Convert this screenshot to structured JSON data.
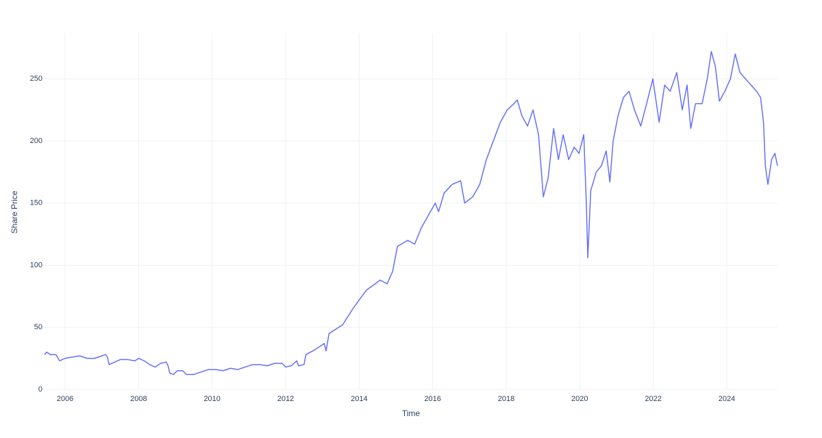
{
  "chart_data": {
    "type": "line",
    "x_label": "Time",
    "y_label": "Share Price",
    "x": [
      2005.44,
      2005.5,
      2005.6,
      2005.75,
      2005.85,
      2006.0,
      2006.2,
      2006.4,
      2006.6,
      2006.8,
      2007.0,
      2007.1,
      2007.15,
      2007.2,
      2007.35,
      2007.5,
      2007.7,
      2007.9,
      2008.0,
      2008.15,
      2008.3,
      2008.45,
      2008.6,
      2008.75,
      2008.8,
      2008.85,
      2008.95,
      2009.05,
      2009.2,
      2009.3,
      2009.5,
      2009.7,
      2009.9,
      2010.1,
      2010.3,
      2010.5,
      2010.7,
      2010.9,
      2011.1,
      2011.3,
      2011.5,
      2011.7,
      2011.9,
      2012.0,
      2012.15,
      2012.3,
      2012.35,
      2012.5,
      2012.55,
      2012.8,
      2012.95,
      2013.05,
      2013.1,
      2013.18,
      2013.55,
      2013.83,
      2014.0,
      2014.2,
      2014.39,
      2014.57,
      2014.76,
      2014.91,
      2015.04,
      2015.32,
      2015.51,
      2015.69,
      2015.88,
      2016.07,
      2016.16,
      2016.31,
      2016.53,
      2016.76,
      2016.87,
      2017.09,
      2017.28,
      2017.46,
      2017.65,
      2017.84,
      2018.03,
      2018.21,
      2018.3,
      2018.43,
      2018.58,
      2018.73,
      2018.88,
      2019.01,
      2019.14,
      2019.29,
      2019.42,
      2019.55,
      2019.7,
      2019.85,
      2019.98,
      2020.11,
      2020.18,
      2020.22,
      2020.3,
      2020.45,
      2020.59,
      2020.72,
      2020.82,
      2020.91,
      2021.04,
      2021.19,
      2021.34,
      2021.49,
      2021.66,
      2021.82,
      2021.99,
      2022.16,
      2022.31,
      2022.46,
      2022.64,
      2022.79,
      2022.92,
      2023.02,
      2023.15,
      2023.33,
      2023.47,
      2023.58,
      2023.69,
      2023.8,
      2023.95,
      2024.1,
      2024.23,
      2024.36,
      2024.51,
      2024.66,
      2024.81,
      2024.92,
      2025.0,
      2025.05,
      2025.12,
      2025.22,
      2025.31,
      2025.38
    ],
    "values": [
      28,
      30,
      28,
      28,
      23,
      25,
      26,
      27,
      25,
      25,
      27,
      28,
      26,
      20,
      22,
      24,
      24,
      23,
      25,
      23,
      20,
      18,
      21,
      22,
      19,
      13,
      12,
      15,
      15,
      12,
      12,
      14,
      16,
      16,
      15,
      17,
      16,
      18,
      20,
      20,
      19,
      21,
      21,
      18,
      19,
      23,
      19,
      20,
      28,
      32,
      35,
      37,
      31,
      45,
      52,
      65,
      72,
      80,
      84,
      88,
      85,
      95,
      115,
      120,
      117,
      130,
      140,
      150,
      143,
      158,
      165,
      168,
      150,
      155,
      165,
      185,
      200,
      215,
      225,
      230,
      233,
      220,
      212,
      225,
      205,
      155,
      170,
      210,
      185,
      205,
      185,
      195,
      190,
      205,
      150,
      106,
      160,
      175,
      180,
      192,
      167,
      200,
      220,
      235,
      240,
      225,
      212,
      230,
      250,
      215,
      245,
      240,
      255,
      225,
      245,
      210,
      230,
      230,
      250,
      272,
      260,
      232,
      240,
      250,
      270,
      255,
      250,
      245,
      240,
      235,
      215,
      180,
      165,
      185,
      190,
      180
    ],
    "color": "#636efa",
    "xlim": [
      2005.44,
      2025.38
    ],
    "xticks": [
      2006,
      2008,
      2010,
      2012,
      2014,
      2016,
      2018,
      2020,
      2022,
      2024
    ],
    "ylim": [
      0,
      287
    ],
    "yticks": [
      0,
      50,
      100,
      150,
      200,
      250
    ],
    "grid": true
  }
}
